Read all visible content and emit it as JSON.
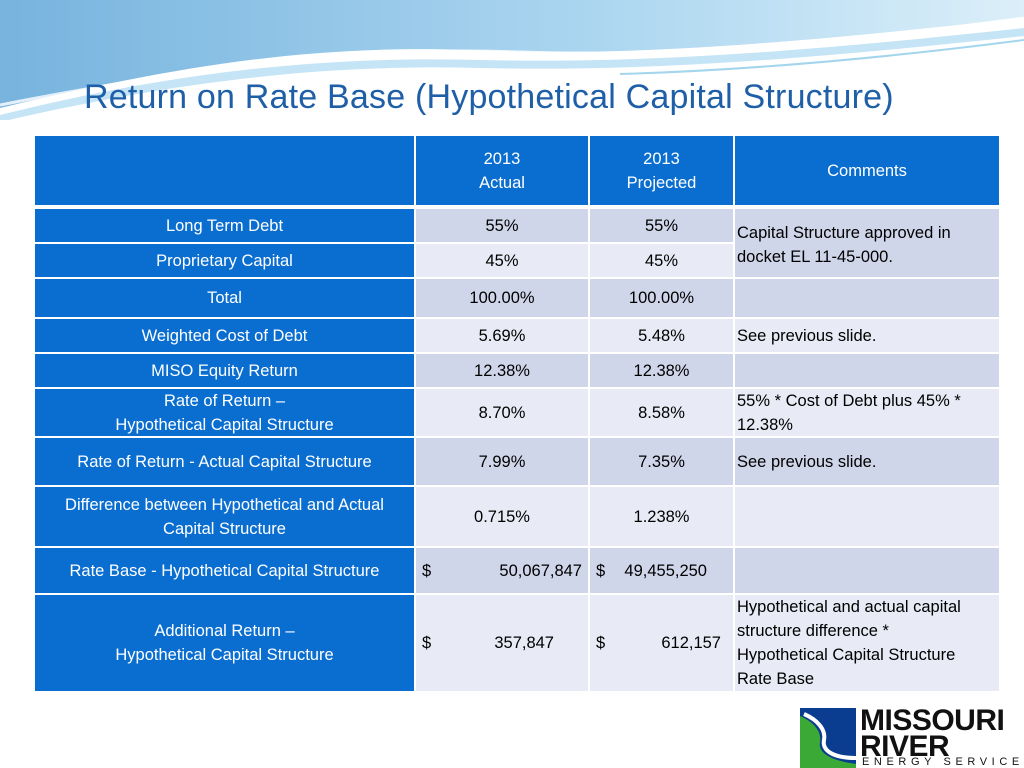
{
  "slide": {
    "title": "Return on Rate Base (Hypothetical Capital Structure)"
  },
  "table": {
    "header": {
      "actual": "2013\nActual",
      "projected": "2013\nProjected",
      "comments": "Comments"
    },
    "rows": [
      {
        "label": "Long Term Debt",
        "actual": "55%",
        "projected": "55%"
      },
      {
        "label": "Proprietary Capital",
        "actual": "45%",
        "projected": "45%"
      },
      {
        "label": "Total",
        "actual": "100.00%",
        "projected": "100.00%"
      },
      {
        "label": "Weighted Cost of Debt",
        "actual": "5.69%",
        "projected": "5.48%",
        "comment": "See previous slide."
      },
      {
        "label": "MISO Equity Return",
        "actual": "12.38%",
        "projected": "12.38%"
      },
      {
        "label": "Rate of Return –\nHypothetical Capital Structure",
        "actual": "8.70%",
        "projected": "8.58%",
        "comment": "55% * Cost of Debt plus  45% *\n12.38%"
      },
      {
        "label": "Rate of Return - Actual Capital Structure",
        "actual": "7.99%",
        "projected": "7.35%",
        "comment": "See previous slide."
      },
      {
        "label": "Difference between Hypothetical and Actual\nCapital Structure",
        "actual": "0.715%",
        "projected": "1.238%"
      },
      {
        "label": "Rate Base - Hypothetical Capital Structure",
        "actual_symbol": "$",
        "actual": "50,067,847",
        "projected_symbol": "$",
        "projected": "49,455,250"
      },
      {
        "label": "Additional Return –\nHypothetical Capital Structure",
        "actual_symbol": "$",
        "actual": "357,847",
        "projected_symbol": "$",
        "projected": "612,157",
        "comment": "Hypothetical and actual  capital\nstructure difference *\nHypothetical Capital Structure\nRate Base"
      }
    ],
    "merged_comment": "Capital Structure  approved  in\ndocket EL 11-45-000."
  },
  "logo": {
    "line1": "MISSOURI",
    "line2": "RIVER",
    "line3": "ENERGY SERVICES®",
    "colors": {
      "blue": "#0a3d8f",
      "green": "#3aa935"
    }
  }
}
